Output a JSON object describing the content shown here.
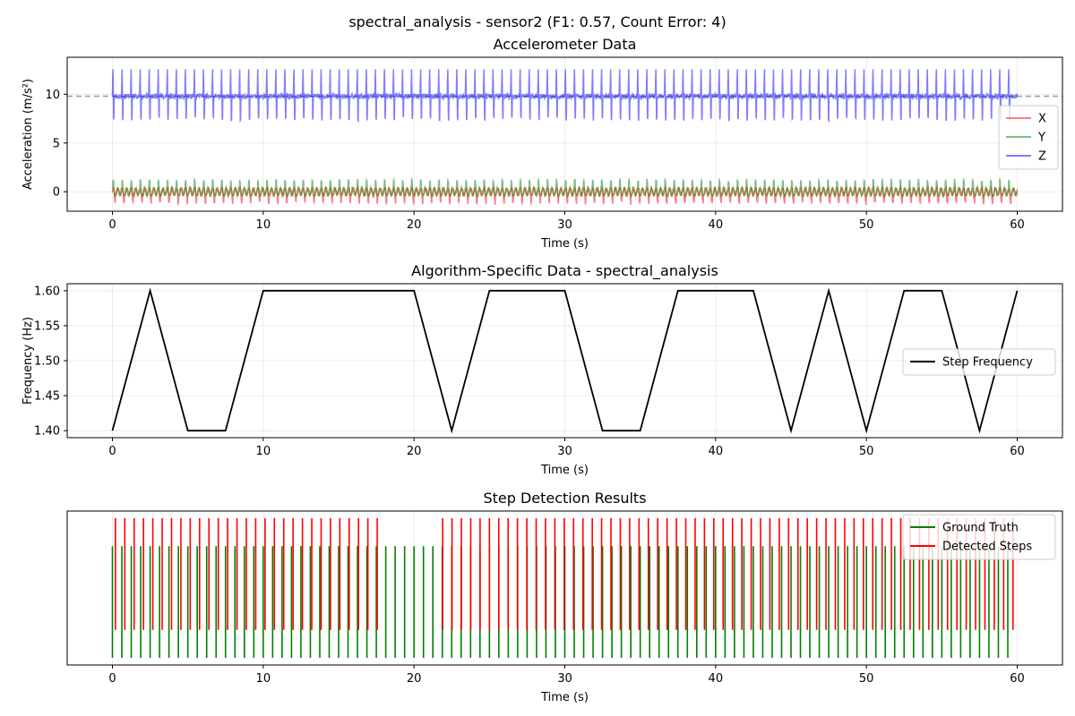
{
  "suptitle": "spectral_analysis - sensor2 (F1: 0.57, Count Error: 4)",
  "chart_data": [
    {
      "type": "line",
      "title": "Accelerometer Data",
      "xlabel": "Time (s)",
      "ylabel": "Acceleration (m/s²)",
      "xlim": [
        -3,
        63
      ],
      "ylim": [
        -2.0,
        13.8
      ],
      "xticks": [
        0,
        10,
        20,
        30,
        40,
        50,
        60
      ],
      "yticks": [
        0,
        5,
        10
      ],
      "grid": true,
      "legend_position": "center-right",
      "reference_line": {
        "y": 9.8,
        "style": "dashed",
        "color": "#999999"
      },
      "signal": {
        "duration": 60,
        "step_period": 0.6,
        "samples_per_second": 50
      },
      "series": [
        {
          "name": "X",
          "color": "#ff0000",
          "baseline": 0.0,
          "min": -1.2,
          "max": 0.3
        },
        {
          "name": "Y",
          "color": "#008000",
          "baseline": 0.0,
          "min": -0.6,
          "max": 1.0
        },
        {
          "name": "Z",
          "color": "#0000ff",
          "baseline": 9.8,
          "min": 7.0,
          "max": 13.0
        }
      ]
    },
    {
      "type": "line",
      "title": "Algorithm-Specific Data - spectral_analysis",
      "xlabel": "Time (s)",
      "ylabel": "Frequency (Hz)",
      "xlim": [
        -3,
        63
      ],
      "ylim": [
        1.39,
        1.61
      ],
      "xticks": [
        0,
        10,
        20,
        30,
        40,
        50,
        60
      ],
      "yticks": [
        1.4,
        1.45,
        1.5,
        1.55,
        1.6
      ],
      "grid": true,
      "legend_position": "center-right",
      "series": [
        {
          "name": "Step Frequency",
          "color": "#000000",
          "x": [
            0,
            2.5,
            5,
            7.5,
            10,
            12.5,
            15,
            17.5,
            20,
            22.5,
            25,
            27.5,
            30,
            32.5,
            35,
            37.5,
            40,
            42.5,
            45,
            47.5,
            50,
            52.5,
            55,
            57.5,
            60
          ],
          "y": [
            1.4,
            1.6,
            1.4,
            1.4,
            1.6,
            1.6,
            1.6,
            1.6,
            1.6,
            1.4,
            1.6,
            1.6,
            1.6,
            1.4,
            1.4,
            1.6,
            1.6,
            1.6,
            1.4,
            1.6,
            1.4,
            1.6,
            1.6,
            1.4,
            1.6
          ]
        }
      ]
    },
    {
      "type": "event",
      "title": "Step Detection Results",
      "xlabel": "Time (s)",
      "ylabel": "",
      "xlim": [
        -3,
        63
      ],
      "xticks": [
        0,
        10,
        20,
        30,
        40,
        50,
        60
      ],
      "grid": true,
      "legend_position": "top-right",
      "series": [
        {
          "name": "Ground Truth",
          "color": "#008000",
          "start": 0.0,
          "interval": 0.625,
          "count": 96,
          "y_range": [
            0.0,
            0.8
          ]
        },
        {
          "name": "Detected Steps",
          "color": "#ff0000",
          "start": 0.2,
          "interval": 0.62,
          "count": 95,
          "gap": [
            18.0,
            21.6
          ],
          "y_range": [
            0.2,
            1.0
          ]
        }
      ]
    }
  ]
}
